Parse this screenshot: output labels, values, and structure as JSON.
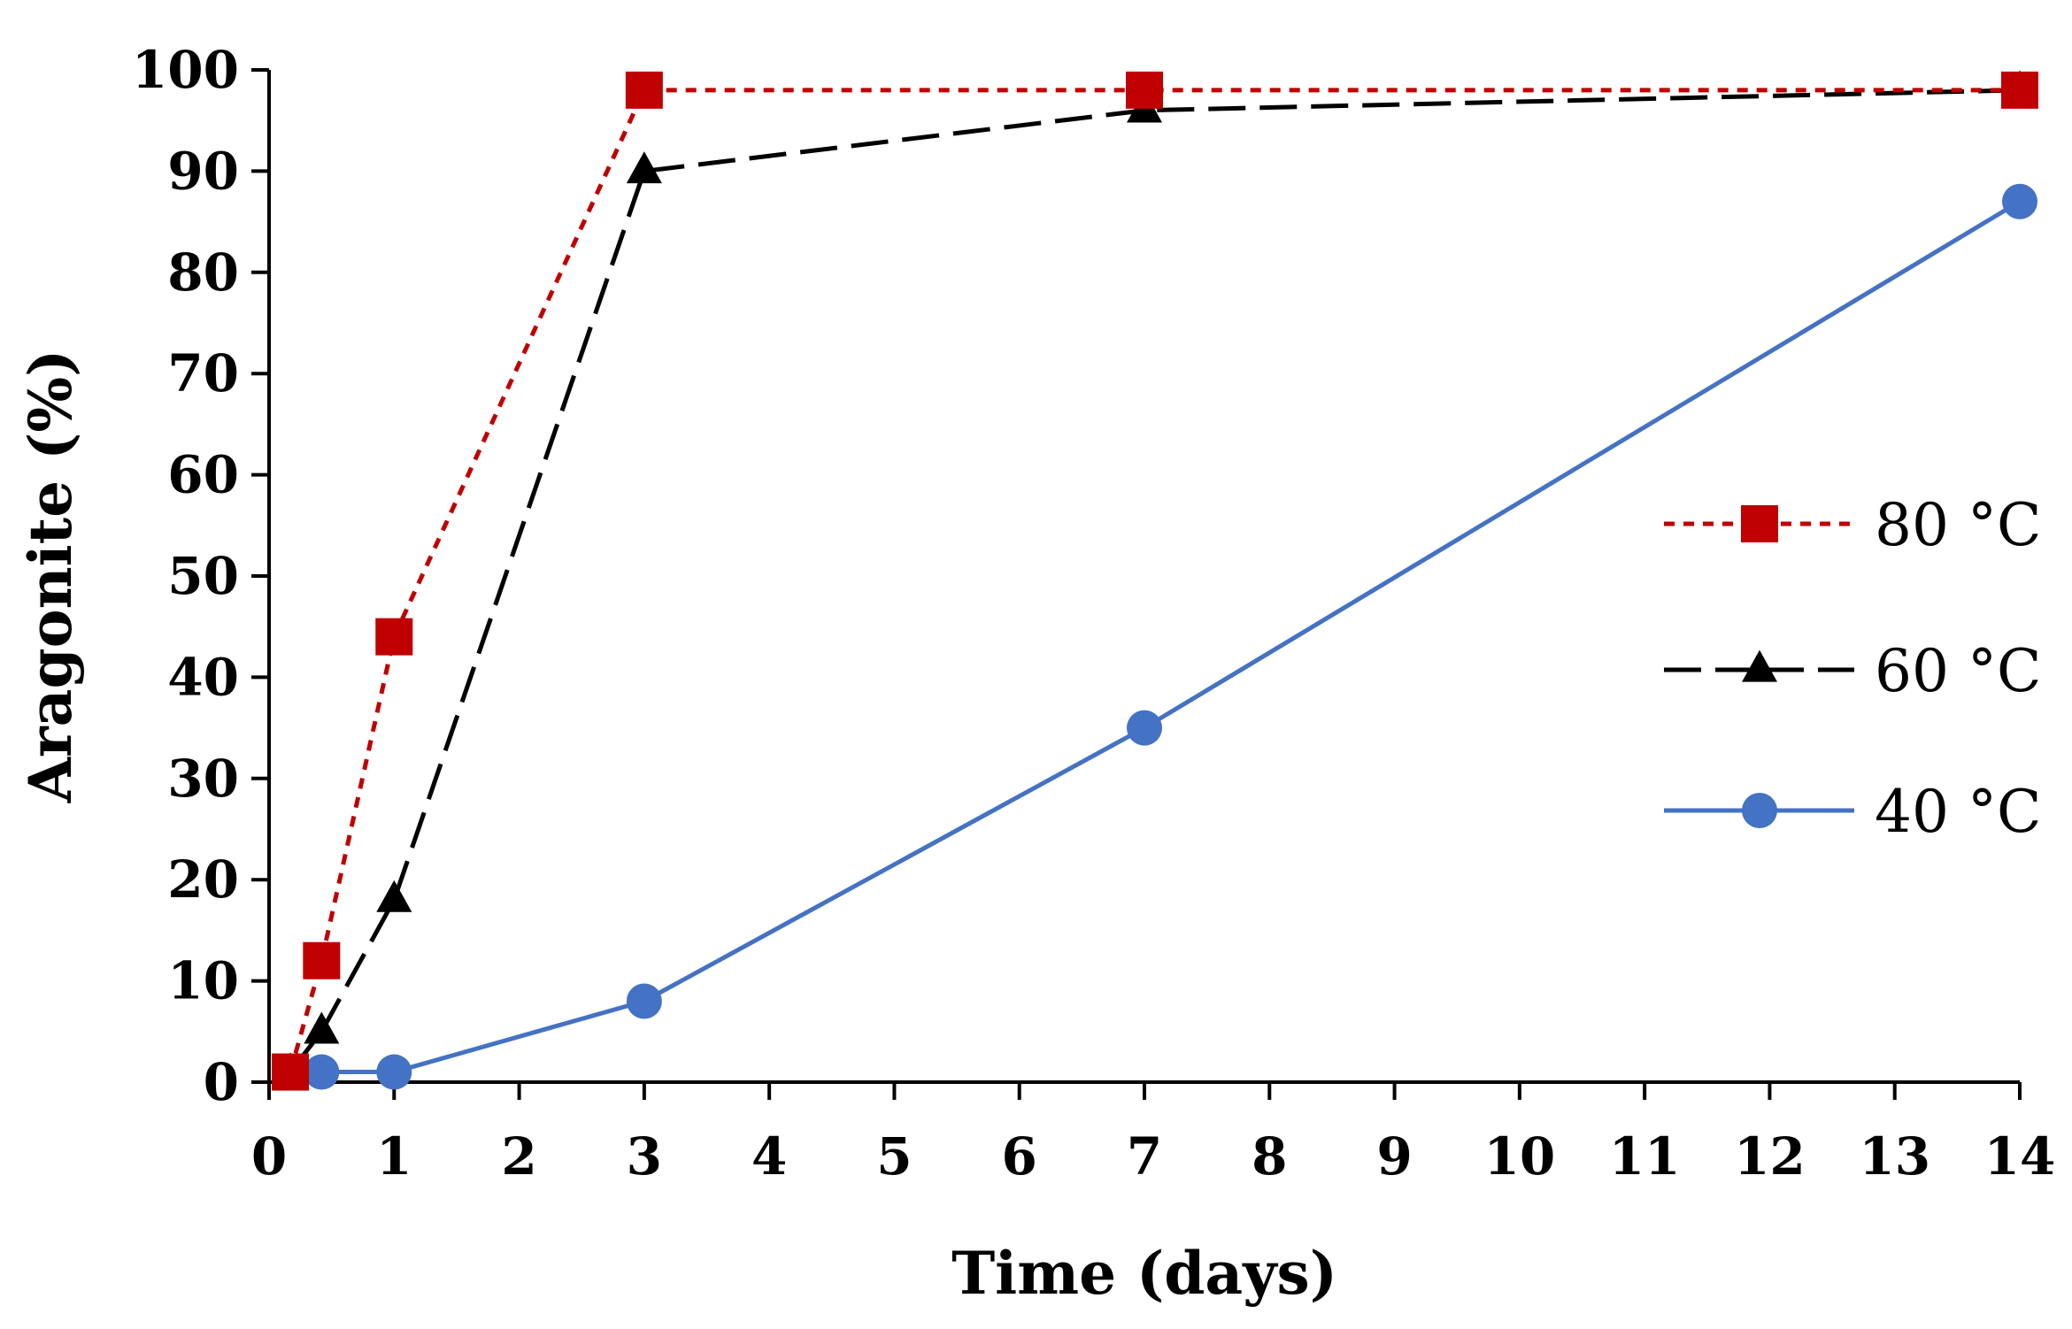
{
  "chart_data": {
    "type": "line",
    "title": "",
    "xlabel": "Time (days)",
    "ylabel": "Aragonite (%)",
    "xlim": [
      0,
      14
    ],
    "ylim": [
      0,
      100
    ],
    "x_ticks": [
      "0",
      "1",
      "2",
      "3",
      "4",
      "5",
      "6",
      "7",
      "8",
      "9",
      "10",
      "11",
      "12",
      "13",
      "14"
    ],
    "y_ticks": [
      "0",
      "10",
      "20",
      "30",
      "40",
      "50",
      "60",
      "70",
      "80",
      "90",
      "100"
    ],
    "grid": false,
    "legend_position": "right",
    "series": [
      {
        "name": "80 °C",
        "color": "#C00000",
        "marker": "square",
        "line_style": "dotted",
        "x": [
          0.17,
          0.42,
          1,
          3,
          7,
          14
        ],
        "y": [
          1,
          12,
          44,
          98,
          98,
          98
        ]
      },
      {
        "name": "60 °C",
        "color": "#000000",
        "marker": "triangle",
        "line_style": "dashed",
        "x": [
          0.17,
          0.42,
          1,
          3,
          7,
          14
        ],
        "y": [
          1,
          5,
          18,
          90,
          96,
          98
        ]
      },
      {
        "name": "40 °C",
        "color": "#4472C4",
        "marker": "circle",
        "line_style": "solid",
        "x": [
          0.17,
          0.42,
          1,
          3,
          7,
          14
        ],
        "y": [
          1,
          1,
          1,
          8,
          35,
          87
        ]
      }
    ]
  }
}
